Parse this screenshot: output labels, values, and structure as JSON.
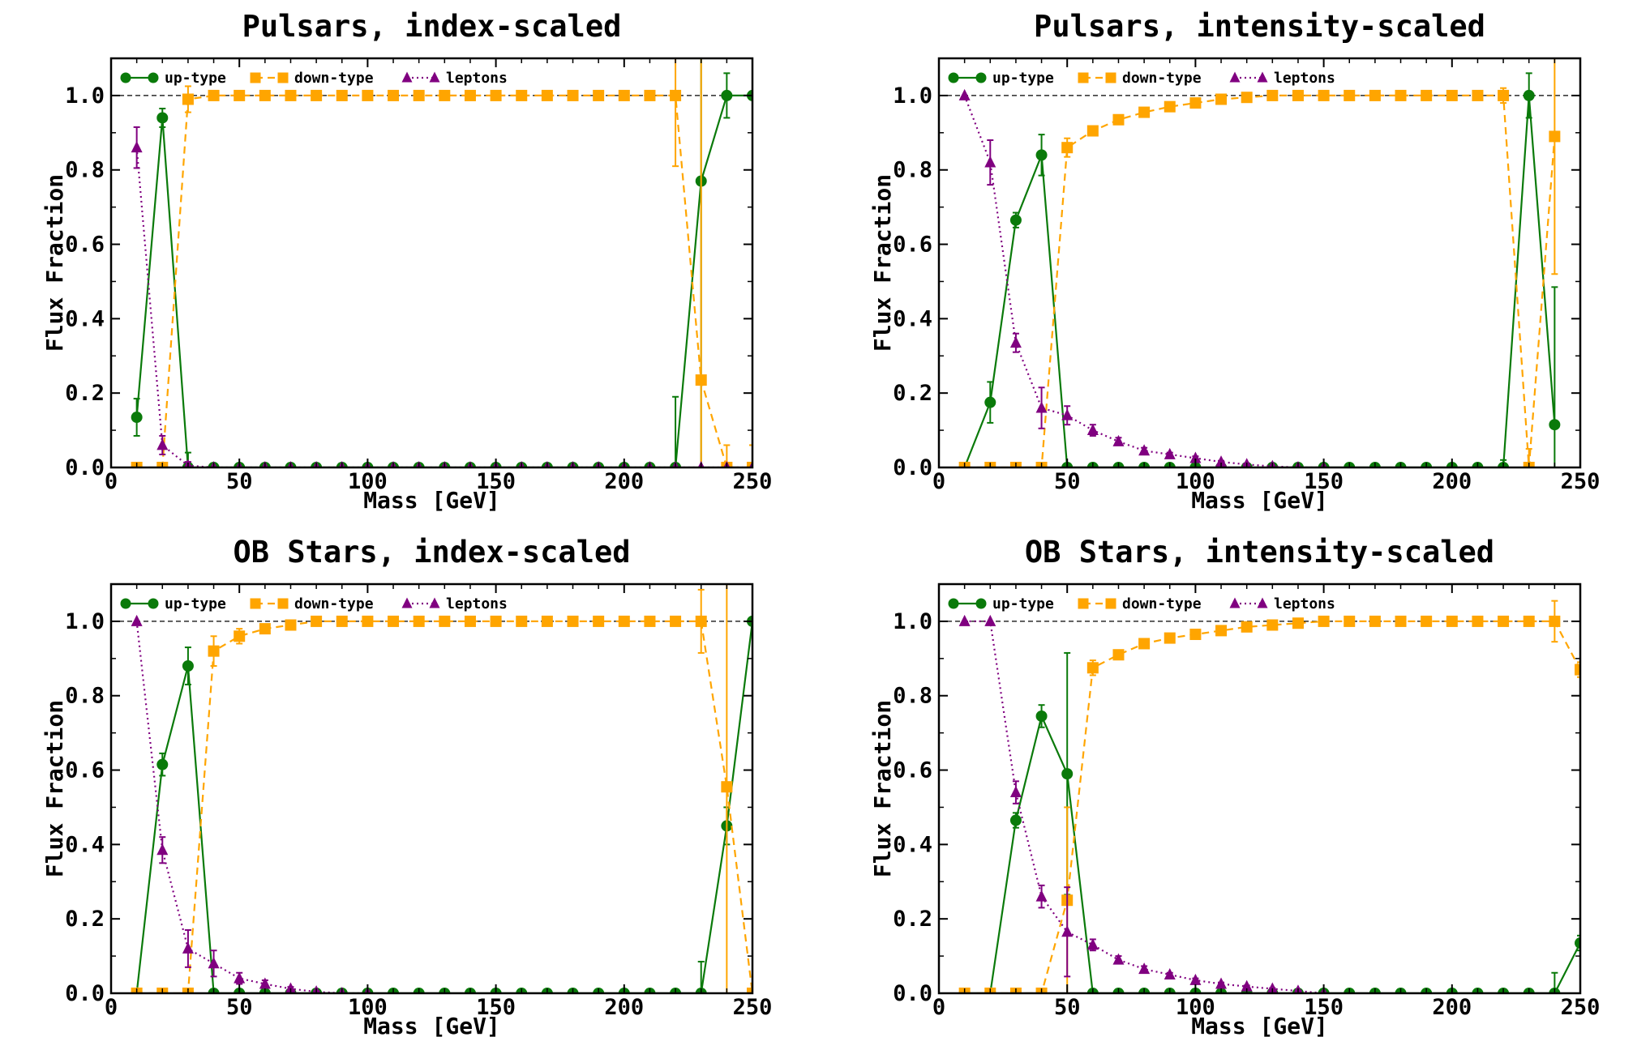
{
  "colors": {
    "up": "#0a7a0a",
    "down": "#ffa500",
    "leptons": "#800080",
    "reference_line": "#000000"
  },
  "chart_data": [
    {
      "type": "line",
      "title": "Pulsars, index-scaled",
      "xlabel": "Mass [GeV]",
      "ylabel": "Flux Fraction",
      "xlim": [
        0,
        250
      ],
      "ylim": [
        0,
        1.1
      ],
      "xticks": [
        "0",
        "50",
        "100",
        "150",
        "200",
        "250"
      ],
      "yticks": [
        "0.0",
        "0.2",
        "0.4",
        "0.6",
        "0.8",
        "1.0"
      ],
      "reference_line_y": 1.0,
      "legend_position": "top",
      "series": [
        {
          "name": "up-type",
          "key": "up",
          "marker": "circle",
          "linestyle": "solid",
          "x": [
            10,
            20,
            30,
            40,
            50,
            60,
            70,
            80,
            90,
            100,
            110,
            120,
            130,
            140,
            150,
            160,
            170,
            180,
            190,
            200,
            210,
            220,
            230,
            240,
            250
          ],
          "y": [
            0.135,
            0.94,
            0,
            0,
            0,
            0,
            0,
            0,
            0,
            0,
            0,
            0,
            0,
            0,
            0,
            0,
            0,
            0,
            0,
            0,
            0,
            0,
            0.77,
            1.0,
            1.0
          ],
          "err": [
            0.05,
            0.025,
            0.04,
            0,
            0,
            0,
            0,
            0,
            0,
            0,
            0,
            0,
            0,
            0,
            0,
            0,
            0,
            0,
            0,
            0,
            0,
            0.19,
            0.77,
            0.06,
            0
          ]
        },
        {
          "name": "down-type",
          "key": "down",
          "marker": "square",
          "linestyle": "dashed",
          "x": [
            10,
            20,
            30,
            40,
            50,
            60,
            70,
            80,
            90,
            100,
            110,
            120,
            130,
            140,
            150,
            160,
            170,
            180,
            190,
            200,
            210,
            220,
            230,
            240,
            250
          ],
          "y": [
            0,
            0,
            0.99,
            1.0,
            1.0,
            1.0,
            1.0,
            1.0,
            1.0,
            1.0,
            1.0,
            1.0,
            1.0,
            1.0,
            1.0,
            1.0,
            1.0,
            1.0,
            1.0,
            1.0,
            1.0,
            1.0,
            0.235,
            0,
            0
          ],
          "err": [
            0,
            0,
            0.035,
            0,
            0,
            0,
            0,
            0,
            0,
            0,
            0,
            0,
            0,
            0,
            0,
            0,
            0,
            0,
            0,
            0,
            0,
            0.19,
            1.0,
            0.06,
            0.06
          ]
        },
        {
          "name": "leptons",
          "key": "leptons",
          "marker": "triangle",
          "linestyle": "dotted",
          "x": [
            10,
            20,
            30,
            40,
            50,
            60,
            70,
            80,
            90,
            100,
            110,
            120,
            130,
            140,
            150,
            160,
            170,
            180,
            190,
            200,
            210,
            220,
            230,
            240,
            250
          ],
          "y": [
            0.86,
            0.06,
            0.005,
            0,
            0,
            0,
            0,
            0,
            0,
            0,
            0,
            0,
            0,
            0,
            0,
            0,
            0,
            0,
            0,
            0,
            0,
            0,
            0,
            0,
            0
          ],
          "err": [
            0.055,
            0.025,
            0.01,
            0,
            0,
            0,
            0,
            0,
            0,
            0,
            0,
            0,
            0,
            0,
            0,
            0,
            0,
            0,
            0,
            0,
            0,
            0,
            0,
            0,
            0
          ]
        }
      ]
    },
    {
      "type": "line",
      "title": "Pulsars, intensity-scaled",
      "xlabel": "Mass [GeV]",
      "ylabel": "Flux Fraction",
      "xlim": [
        0,
        250
      ],
      "ylim": [
        0,
        1.1
      ],
      "xticks": [
        "0",
        "50",
        "100",
        "150",
        "200",
        "250"
      ],
      "yticks": [
        "0.0",
        "0.2",
        "0.4",
        "0.6",
        "0.8",
        "1.0"
      ],
      "reference_line_y": 1.0,
      "legend_position": "top",
      "series": [
        {
          "name": "up-type",
          "key": "up",
          "marker": "circle",
          "linestyle": "solid",
          "x": [
            10,
            20,
            30,
            40,
            50,
            60,
            70,
            80,
            90,
            100,
            110,
            120,
            130,
            140,
            150,
            160,
            170,
            180,
            190,
            200,
            210,
            220,
            230,
            240
          ],
          "y": [
            0,
            0.175,
            0.665,
            0.84,
            0,
            0,
            0,
            0,
            0,
            0,
            0,
            0,
            0,
            0,
            0,
            0,
            0,
            0,
            0,
            0,
            0,
            0,
            1.0,
            0.115
          ],
          "err": [
            0,
            0.055,
            0.02,
            0.055,
            0,
            0,
            0,
            0,
            0,
            0,
            0,
            0,
            0,
            0,
            0,
            0,
            0,
            0,
            0,
            0,
            0,
            0.02,
            0.06,
            0.37
          ]
        },
        {
          "name": "down-type",
          "key": "down",
          "marker": "square",
          "linestyle": "dashed",
          "x": [
            10,
            20,
            30,
            40,
            50,
            60,
            70,
            80,
            90,
            100,
            110,
            120,
            130,
            140,
            150,
            160,
            170,
            180,
            190,
            200,
            210,
            220,
            230,
            240
          ],
          "y": [
            0,
            0,
            0,
            0,
            0.86,
            0.905,
            0.935,
            0.955,
            0.97,
            0.98,
            0.99,
            0.995,
            1.0,
            1.0,
            1.0,
            1.0,
            1.0,
            1.0,
            1.0,
            1.0,
            1.0,
            1.0,
            0,
            0.89
          ],
          "err": [
            0,
            0,
            0,
            0,
            0.025,
            0.01,
            0.01,
            0.005,
            0.005,
            0.005,
            0.005,
            0,
            0,
            0,
            0,
            0,
            0,
            0,
            0,
            0,
            0,
            0.02,
            0.05,
            0.37
          ]
        },
        {
          "name": "leptons",
          "key": "leptons",
          "marker": "triangle",
          "linestyle": "dotted",
          "x": [
            10,
            20,
            30,
            40,
            50,
            60,
            70,
            80,
            90,
            100,
            110,
            120,
            130,
            140,
            150
          ],
          "y": [
            1.0,
            0.82,
            0.335,
            0.16,
            0.14,
            0.1,
            0.07,
            0.045,
            0.035,
            0.025,
            0.015,
            0.008,
            0.003,
            0,
            0
          ],
          "err": [
            0,
            0.06,
            0.025,
            0.055,
            0.025,
            0.015,
            0.01,
            0.008,
            0.005,
            0.005,
            0.003,
            0.002,
            0,
            0,
            0
          ]
        }
      ]
    },
    {
      "type": "line",
      "title": "OB Stars, index-scaled",
      "xlabel": "Mass [GeV]",
      "ylabel": "Flux Fraction",
      "xlim": [
        0,
        250
      ],
      "ylim": [
        0,
        1.1
      ],
      "xticks": [
        "0",
        "50",
        "100",
        "150",
        "200",
        "250"
      ],
      "yticks": [
        "0.0",
        "0.2",
        "0.4",
        "0.6",
        "0.8",
        "1.0"
      ],
      "reference_line_y": 1.0,
      "legend_position": "top",
      "series": [
        {
          "name": "up-type",
          "key": "up",
          "marker": "circle",
          "linestyle": "solid",
          "x": [
            10,
            20,
            30,
            40,
            50,
            60,
            70,
            80,
            90,
            100,
            110,
            120,
            130,
            140,
            150,
            160,
            170,
            180,
            190,
            200,
            210,
            220,
            230,
            240,
            250
          ],
          "y": [
            0,
            0.615,
            0.88,
            0,
            0,
            0,
            0,
            0,
            0,
            0,
            0,
            0,
            0,
            0,
            0,
            0,
            0,
            0,
            0,
            0,
            0,
            0,
            0,
            0.45,
            1.0
          ],
          "err": [
            0,
            0.03,
            0.05,
            0,
            0,
            0,
            0,
            0,
            0,
            0,
            0,
            0,
            0,
            0,
            0,
            0,
            0,
            0,
            0,
            0,
            0,
            0,
            0.085,
            0.05,
            0
          ]
        },
        {
          "name": "down-type",
          "key": "down",
          "marker": "square",
          "linestyle": "dashed",
          "x": [
            10,
            20,
            30,
            40,
            50,
            60,
            70,
            80,
            90,
            100,
            110,
            120,
            130,
            140,
            150,
            160,
            170,
            180,
            190,
            200,
            210,
            220,
            230,
            240,
            250
          ],
          "y": [
            0,
            0,
            0,
            0.92,
            0.96,
            0.98,
            0.99,
            1.0,
            1.0,
            1.0,
            1.0,
            1.0,
            1.0,
            1.0,
            1.0,
            1.0,
            1.0,
            1.0,
            1.0,
            1.0,
            1.0,
            1.0,
            1.0,
            0.555,
            0
          ],
          "err": [
            0,
            0,
            0,
            0.04,
            0.02,
            0.01,
            0.005,
            0,
            0,
            0,
            0,
            0,
            0,
            0,
            0,
            0,
            0,
            0,
            0,
            0,
            0,
            0,
            0.085,
            0.6,
            0
          ]
        },
        {
          "name": "leptons",
          "key": "leptons",
          "marker": "triangle",
          "linestyle": "dotted",
          "x": [
            10,
            20,
            30,
            40,
            50,
            60,
            70,
            80,
            90,
            100
          ],
          "y": [
            1.0,
            0.385,
            0.12,
            0.08,
            0.04,
            0.025,
            0.012,
            0.004,
            0,
            0
          ],
          "err": [
            0,
            0.035,
            0.05,
            0.035,
            0.015,
            0.01,
            0.005,
            0.002,
            0,
            0
          ]
        }
      ]
    },
    {
      "type": "line",
      "title": "OB Stars, intensity-scaled",
      "xlabel": "Mass [GeV]",
      "ylabel": "Flux Fraction",
      "xlim": [
        0,
        250
      ],
      "ylim": [
        0,
        1.1
      ],
      "xticks": [
        "0",
        "50",
        "100",
        "150",
        "200",
        "250"
      ],
      "yticks": [
        "0.0",
        "0.2",
        "0.4",
        "0.6",
        "0.8",
        "1.0"
      ],
      "reference_line_y": 1.0,
      "legend_position": "top",
      "series": [
        {
          "name": "up-type",
          "key": "up",
          "marker": "circle",
          "linestyle": "solid",
          "x": [
            10,
            20,
            30,
            40,
            50,
            60,
            70,
            80,
            90,
            100,
            110,
            120,
            130,
            140,
            150,
            160,
            170,
            180,
            190,
            200,
            210,
            220,
            230,
            240,
            250
          ],
          "y": [
            0,
            0,
            0.465,
            0.745,
            0.59,
            0,
            0,
            0,
            0,
            0,
            0,
            0,
            0,
            0,
            0,
            0,
            0,
            0,
            0,
            0,
            0,
            0,
            0,
            0,
            0.135
          ],
          "err": [
            0,
            0,
            0.02,
            0.03,
            0.325,
            0,
            0,
            0,
            0,
            0,
            0,
            0,
            0,
            0,
            0,
            0,
            0,
            0,
            0,
            0,
            0,
            0,
            0,
            0.055,
            0.02
          ]
        },
        {
          "name": "down-type",
          "key": "down",
          "marker": "square",
          "linestyle": "dashed",
          "x": [
            10,
            20,
            30,
            40,
            50,
            60,
            70,
            80,
            90,
            100,
            110,
            120,
            130,
            140,
            150,
            160,
            170,
            180,
            190,
            200,
            210,
            220,
            230,
            240,
            250
          ],
          "y": [
            0,
            0,
            0,
            0,
            0.25,
            0.875,
            0.91,
            0.94,
            0.955,
            0.965,
            0.975,
            0.985,
            0.99,
            0.995,
            1.0,
            1.0,
            1.0,
            1.0,
            1.0,
            1.0,
            1.0,
            1.0,
            1.0,
            1.0,
            0.87
          ],
          "err": [
            0,
            0,
            0,
            0,
            0.25,
            0.02,
            0.01,
            0.008,
            0.005,
            0.004,
            0.003,
            0.002,
            0.002,
            0.001,
            0,
            0,
            0,
            0,
            0,
            0,
            0,
            0,
            0,
            0.055,
            0.02
          ]
        },
        {
          "name": "leptons",
          "key": "leptons",
          "marker": "triangle",
          "linestyle": "dotted",
          "x": [
            10,
            20,
            30,
            40,
            50,
            60,
            70,
            80,
            90,
            100,
            110,
            120,
            130,
            140,
            150
          ],
          "y": [
            1.0,
            1.0,
            0.54,
            0.26,
            0.165,
            0.13,
            0.09,
            0.065,
            0.05,
            0.035,
            0.025,
            0.018,
            0.012,
            0.006,
            0
          ],
          "err": [
            0,
            0,
            0.03,
            0.03,
            0.12,
            0.015,
            0.01,
            0.008,
            0.005,
            0.005,
            0.004,
            0.003,
            0.002,
            0.002,
            0
          ]
        }
      ]
    }
  ]
}
